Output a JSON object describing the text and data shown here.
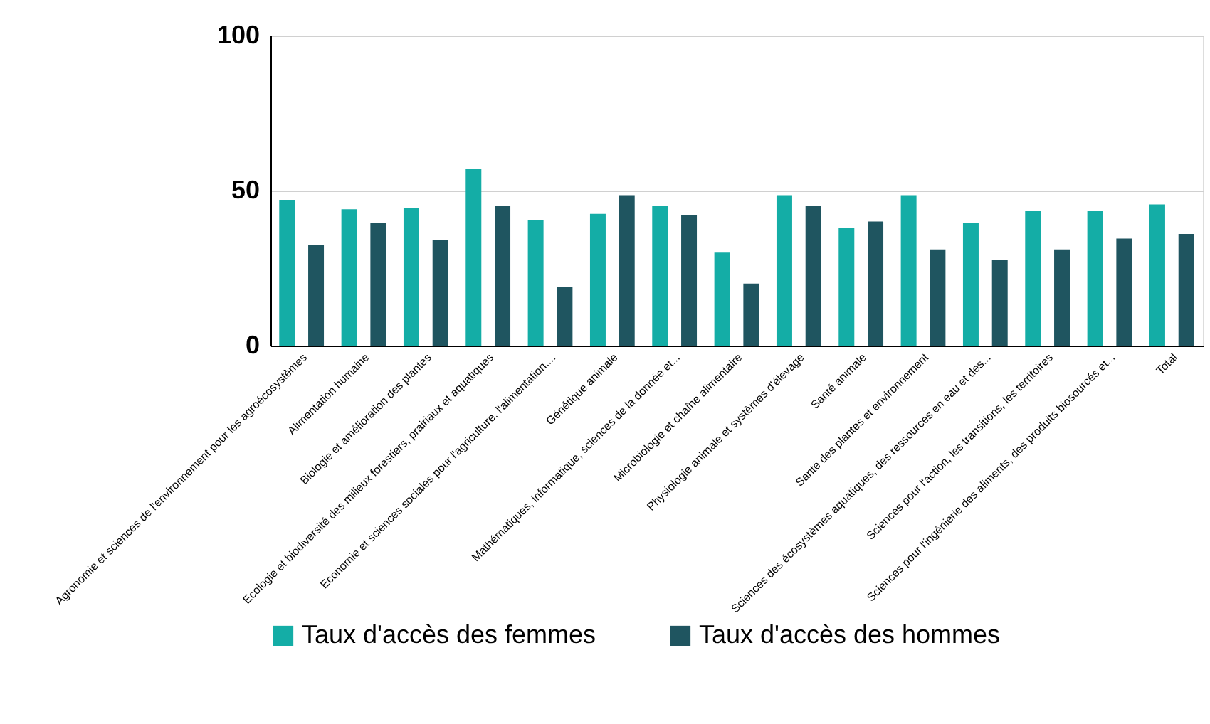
{
  "chart_data": {
    "type": "bar",
    "categories": [
      "Agronomie et sciences de l'environnement pour les agroécosystèmes",
      "Alimentation humaine",
      "Biologie et amélioration des plantes",
      "Ecologie et biodiversité des milieux forestiers, prairiaux et aquatiques",
      "Economie et sciences sociales pour l'agriculture, l'alimentation,...",
      "Génétique animale",
      "Mathématiques, informatique, sciences de la donnée et...",
      "Microbiologie et chaîne alimentaire",
      "Physiologie animale et systèmes d'élevage",
      "Santé animale",
      "Santé des plantes et environnement",
      "Sciences des écosystèmes aquatiques, des ressources en eau et des...",
      "Sciences pour l'action, les transitions, les territoires",
      "Sciences pour l'ingénierie des aliments, des produits biosourcés et...",
      "Total"
    ],
    "series": [
      {
        "name": "Taux d'accès des femmes",
        "color": "#14ada6",
        "values": [
          47,
          44,
          44.5,
          57,
          40.5,
          42.5,
          45,
          30,
          48.5,
          38,
          48.5,
          39.5,
          43.5,
          43.5,
          45.5
        ]
      },
      {
        "name": "Taux d'accès des hommes",
        "color": "#1f5560",
        "values": [
          32.5,
          39.5,
          34,
          45,
          19,
          48.5,
          42,
          20,
          45,
          40,
          31,
          27.5,
          31,
          34.5,
          36
        ]
      }
    ],
    "ylim": [
      0,
      100
    ],
    "yticks": [
      0,
      50,
      100
    ],
    "grid": "y",
    "legend": "bottom"
  }
}
